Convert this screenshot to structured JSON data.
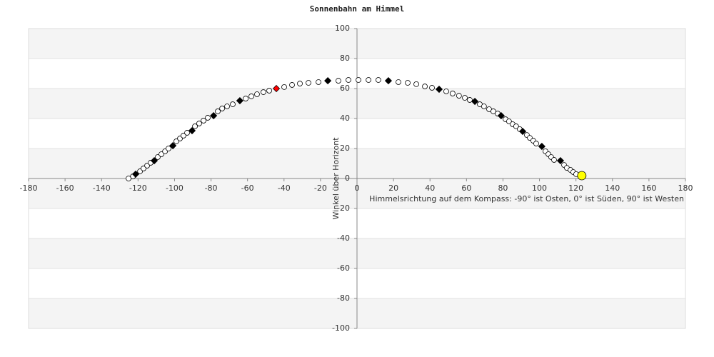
{
  "chart_data": {
    "type": "scatter",
    "title": "Sonnenbahn am Himmel",
    "x_label": "Himmelsrichtung auf dem Kompass: -90° ist Osten, 0° ist Süden, 90° ist Westen",
    "y_label": "Winkel über Horizont",
    "xlim": [
      -180,
      180
    ],
    "ylim": [
      -100,
      100
    ],
    "xticks": [
      -180,
      -160,
      -140,
      -120,
      -100,
      -80,
      -60,
      -40,
      -20,
      0,
      20,
      40,
      60,
      80,
      100,
      120,
      140,
      160,
      180
    ],
    "yticks": [
      -100,
      -80,
      -60,
      -40,
      -20,
      0,
      20,
      40,
      60,
      80,
      100
    ],
    "grid": true,
    "series": [
      {
        "color": "#ffffff",
        "marker": "circle",
        "marker_size": 7,
        "x": [
          -125.2,
          -122.8,
          -118.9,
          -117,
          -115,
          -113.1,
          -109.2,
          -107.2,
          -105.2,
          -103.3,
          -99,
          -97,
          -95.1,
          -93.1,
          -88.8,
          -86.5,
          -84.1,
          -81.8,
          -76.3,
          -73.9,
          -71.2,
          -68.1,
          -61,
          -57.9,
          -54.8,
          -51.3,
          -48.1,
          -39.9,
          -35.6,
          -31.3,
          -26.6,
          -21.1,
          -10.2,
          -4.7,
          0.8,
          6.3,
          11.7,
          22.7,
          27.8,
          32.5,
          37.2,
          41.1,
          48.9,
          52.4,
          55.9,
          59.1,
          61.8,
          67.3,
          69.6,
          72.4,
          74.7,
          77.1,
          81.4,
          83.3,
          85.3,
          87.2,
          89.2,
          93.1,
          94.7,
          96.6,
          98.2,
          103.3,
          104.9,
          106.4,
          108,
          113.5,
          115,
          117,
          118.5,
          120.1
        ],
        "values": [
          0,
          1.4,
          4.8,
          6.7,
          8.6,
          10.5,
          14.3,
          16.2,
          18.1,
          20,
          24.8,
          26.7,
          28.6,
          30.5,
          34.8,
          36.7,
          38.6,
          40.5,
          44.8,
          46.7,
          48.1,
          49.5,
          53.3,
          54.8,
          56.2,
          57.6,
          58.6,
          61,
          62.4,
          63.3,
          63.8,
          64.3,
          65.2,
          65.7,
          65.7,
          65.7,
          65.7,
          64.3,
          63.8,
          62.9,
          61.4,
          60.5,
          58.1,
          56.7,
          55.2,
          53.8,
          52.4,
          49.5,
          48.1,
          46.2,
          44.8,
          43.3,
          39.5,
          38.1,
          36.2,
          34.8,
          32.9,
          29,
          27.1,
          25.2,
          23.3,
          18.1,
          16.2,
          14.3,
          12.4,
          9,
          7.1,
          5.7,
          4.3,
          2.9
        ]
      },
      {
        "color": "#000000",
        "marker": "diamond",
        "marker_size": 9,
        "x": [
          -121.3,
          -111.1,
          -100.9,
          -90.4,
          -78.6,
          -64.2,
          -16,
          17.2,
          45,
          64.6,
          79,
          90.8,
          101.3,
          111.5
        ],
        "values": [
          2.9,
          11.9,
          21.9,
          31.9,
          41.9,
          51.9,
          65.2,
          65.2,
          59.5,
          51.4,
          41.9,
          31.4,
          21.4,
          11.9
        ]
      },
      {
        "color": "#ff0000",
        "marker": "diamond",
        "marker_size": 9,
        "x": [
          -44.2
        ],
        "values": [
          60
        ]
      },
      {
        "color": "#ffff00",
        "marker": "circle",
        "marker_size": 12,
        "x": [
          123.2
        ],
        "values": [
          1.9
        ]
      }
    ]
  }
}
